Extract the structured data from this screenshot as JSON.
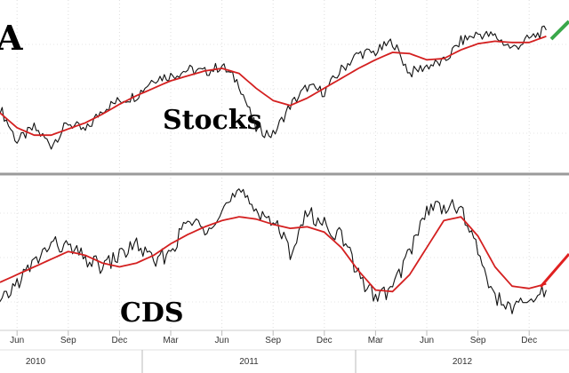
{
  "chart_data": [
    {
      "type": "line",
      "title_fragment": "A",
      "label": "Stocks",
      "x": [
        "2010-05",
        "2010-06",
        "2010-07",
        "2010-08",
        "2010-09",
        "2010-10",
        "2010-11",
        "2010-12",
        "2011-01",
        "2011-02",
        "2011-03",
        "2011-04",
        "2011-05",
        "2011-06",
        "2011-07",
        "2011-08",
        "2011-09",
        "2011-10",
        "2011-11",
        "2011-12",
        "2012-01",
        "2012-02",
        "2012-03",
        "2012-04",
        "2012-05",
        "2012-06",
        "2012-07",
        "2012-08",
        "2012-09",
        "2012-10",
        "2012-11",
        "2012-12",
        "2013-01"
      ],
      "series": [
        {
          "color": "#111111",
          "values": [
            0.82,
            0.55,
            0.66,
            0.52,
            0.7,
            0.63,
            0.81,
            0.88,
            0.92,
            1.06,
            1.08,
            1.13,
            1.11,
            1.16,
            1.02,
            0.65,
            0.6,
            0.84,
            0.99,
            0.95,
            1.13,
            1.26,
            1.27,
            1.36,
            1.1,
            1.16,
            1.19,
            1.36,
            1.42,
            1.4,
            1.3,
            1.38,
            1.45
          ]
        },
        {
          "color": "#d42020",
          "values": [
            0.78,
            0.66,
            0.6,
            0.6,
            0.65,
            0.7,
            0.77,
            0.85,
            0.92,
            0.98,
            1.04,
            1.08,
            1.12,
            1.14,
            1.1,
            0.98,
            0.88,
            0.84,
            0.9,
            0.98,
            1.06,
            1.14,
            1.21,
            1.27,
            1.26,
            1.21,
            1.22,
            1.29,
            1.34,
            1.36,
            1.35,
            1.35,
            1.4
          ]
        }
      ]
    },
    {
      "type": "line",
      "label": "CDS",
      "x": [
        "2010-05",
        "2010-06",
        "2010-07",
        "2010-08",
        "2010-09",
        "2010-10",
        "2010-11",
        "2010-12",
        "2011-01",
        "2011-02",
        "2011-03",
        "2011-04",
        "2011-05",
        "2011-06",
        "2011-07",
        "2011-08",
        "2011-09",
        "2011-10",
        "2011-11",
        "2011-12",
        "2012-01",
        "2012-02",
        "2012-03",
        "2012-04",
        "2012-05",
        "2012-06",
        "2012-07",
        "2012-08",
        "2012-09",
        "2012-10",
        "2012-11",
        "2012-12",
        "2013-01"
      ],
      "series": [
        {
          "color": "#111111",
          "values": [
            0.5,
            0.8,
            1.05,
            1.3,
            1.25,
            1.1,
            1.0,
            1.15,
            1.3,
            1.05,
            1.2,
            1.6,
            1.5,
            1.75,
            1.95,
            1.75,
            1.6,
            1.2,
            1.7,
            1.55,
            1.4,
            0.9,
            0.6,
            0.72,
            1.2,
            1.75,
            1.8,
            1.75,
            1.2,
            0.6,
            0.45,
            0.55,
            0.7
          ]
        },
        {
          "color": "#d42020",
          "values": [
            0.8,
            0.9,
            1.0,
            1.1,
            1.2,
            1.15,
            1.05,
            1.0,
            1.05,
            1.15,
            1.3,
            1.42,
            1.52,
            1.6,
            1.65,
            1.62,
            1.55,
            1.5,
            1.52,
            1.45,
            1.25,
            0.95,
            0.7,
            0.68,
            0.9,
            1.25,
            1.6,
            1.65,
            1.4,
            1.0,
            0.75,
            0.72,
            0.78
          ]
        }
      ]
    }
  ],
  "x_axis": {
    "months": [
      "Jun",
      "Sep",
      "Dec",
      "Mar",
      "Jun",
      "Sep",
      "Dec",
      "Mar",
      "Jun",
      "Sep",
      "Dec"
    ],
    "years": [
      "2010",
      "2011",
      "2012"
    ]
  },
  "colors": {
    "price": "#111111",
    "moving_average": "#d42020",
    "divider": "#9a9a9a",
    "green_arrow": "#3aa84a",
    "red_arrow": "#e02020",
    "grid": "#c8c8c8"
  }
}
